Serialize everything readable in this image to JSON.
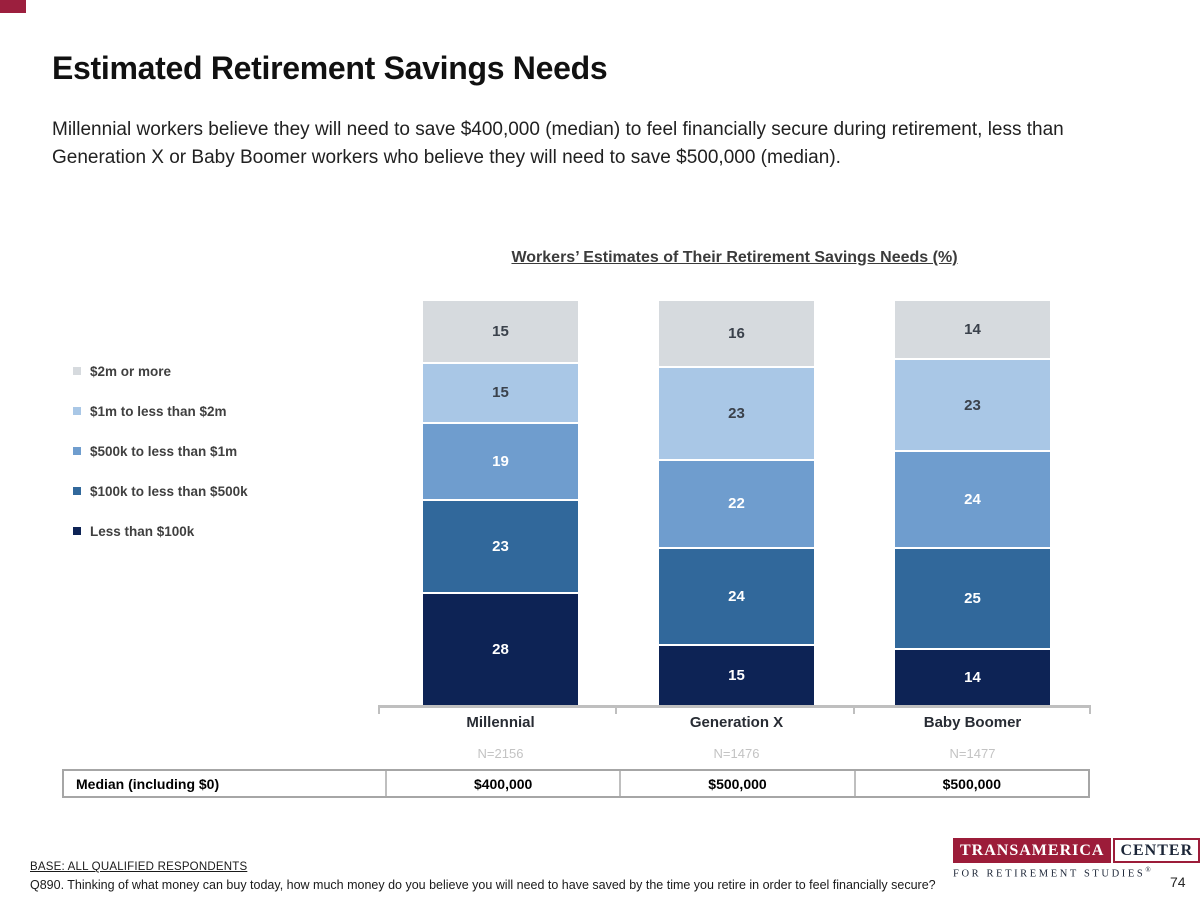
{
  "slide": {
    "title": "Estimated Retirement Savings Needs",
    "intro": "Millennial workers believe they will need to save $400,000 (median) to feel financially secure during retirement, less than Generation X or Baby Boomer workers who believe they will need to save $500,000 (median).",
    "page_number": "74",
    "accent_color": "#9c1f3e"
  },
  "chart_data": {
    "type": "bar",
    "stacked": true,
    "units": "%",
    "title": "Workers’ Estimates of Their Retirement Savings Needs (%)",
    "categories": [
      "Millennial",
      "Generation X",
      "Baby Boomer"
    ],
    "category_n": [
      "N=2156",
      "N=1476",
      "N=1477"
    ],
    "series": [
      {
        "name": "$2m or more",
        "color": "#d6dade",
        "label_color": "#3a414b",
        "values": [
          15,
          16,
          14
        ]
      },
      {
        "name": "$1m to less than $2m",
        "color": "#a9c7e6",
        "label_color": "#3a414b",
        "values": [
          15,
          23,
          23
        ]
      },
      {
        "name": "$500k to less than $1m",
        "color": "#6f9dce",
        "label_color": "#ffffff",
        "values": [
          19,
          22,
          24
        ]
      },
      {
        "name": "$100k to less than $500k",
        "color": "#31689b",
        "label_color": "#ffffff",
        "values": [
          23,
          24,
          25
        ]
      },
      {
        "name": "Less than $100k",
        "color": "#0d2355",
        "label_color": "#ffffff",
        "values": [
          28,
          15,
          14
        ]
      }
    ],
    "ylim": [
      0,
      100
    ],
    "grid": false,
    "legend_position": "left"
  },
  "median_table": {
    "row_label": "Median (including $0)",
    "values": [
      "$400,000",
      "$500,000",
      "$500,000"
    ]
  },
  "footer": {
    "base_text": "BASE: ALL QUALIFIED RESPONDENTS",
    "question_text": "Q890. Thinking of what money can buy today, how much money do you believe you will need to have saved by the time you retire in order to feel financially secure?",
    "logo": {
      "line1_left": "TRANSAMERICA",
      "line1_right": "CENTER",
      "line2": "FOR RETIREMENT STUDIES",
      "registered": "®",
      "brand_color": "#9c1c39"
    }
  }
}
